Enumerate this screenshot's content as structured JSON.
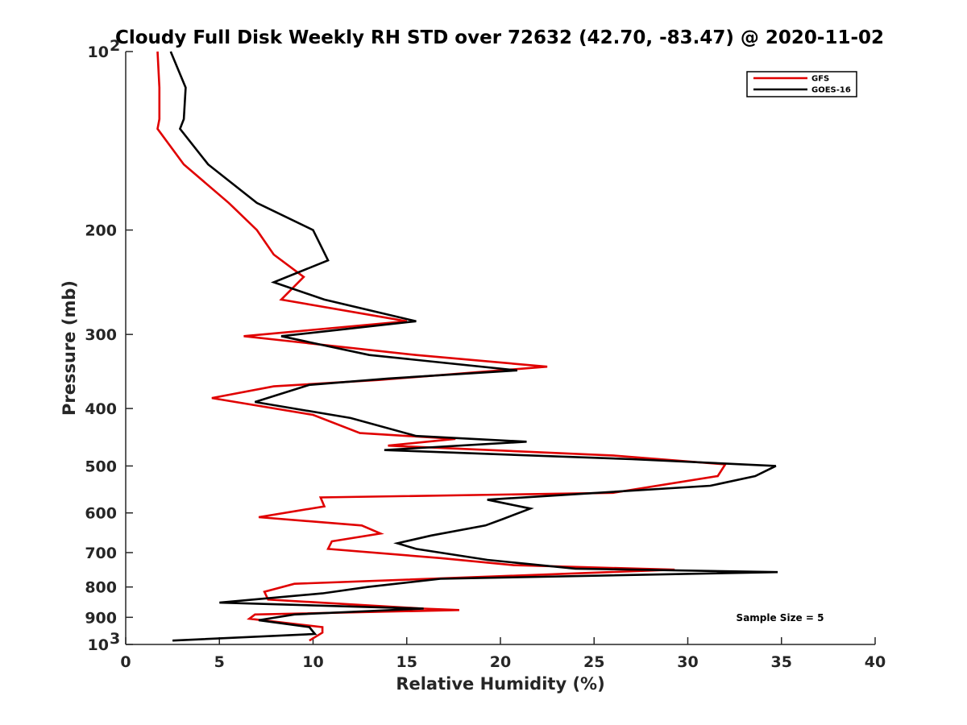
{
  "chart_data": {
    "type": "line",
    "title": "Cloudy Full Disk Weekly RH STD over 72632 (42.70, -83.47) @ 2020-11-02",
    "xlabel": "Relative Humidity (%)",
    "ylabel": "Pressure (mb)",
    "xlim": [
      0,
      40
    ],
    "ylim": [
      100,
      1000
    ],
    "y_scale": "log",
    "y_reversed": true,
    "grid": false,
    "legend_position": "top-right",
    "x_ticks": [
      "0",
      "5",
      "10",
      "15",
      "20",
      "25",
      "30",
      "35",
      "40"
    ],
    "y_ticks": [
      {
        "value": 100,
        "label": "10",
        "sup": "2"
      },
      {
        "value": 200,
        "label": "200",
        "sup": ""
      },
      {
        "value": 300,
        "label": "300",
        "sup": ""
      },
      {
        "value": 400,
        "label": "400",
        "sup": ""
      },
      {
        "value": 500,
        "label": "500",
        "sup": ""
      },
      {
        "value": 600,
        "label": "600",
        "sup": ""
      },
      {
        "value": 700,
        "label": "700",
        "sup": ""
      },
      {
        "value": 800,
        "label": "800",
        "sup": ""
      },
      {
        "value": 900,
        "label": "900",
        "sup": ""
      },
      {
        "value": 1000,
        "label": "10",
        "sup": "3"
      }
    ],
    "annotation": "Sample Size = 5",
    "series": [
      {
        "name": "GFS",
        "color": "#e00000",
        "points": [
          [
            1.7,
            100
          ],
          [
            1.8,
            115
          ],
          [
            1.8,
            130
          ],
          [
            1.7,
            135
          ],
          [
            3.1,
            155
          ],
          [
            5.5,
            180
          ],
          [
            7.0,
            200
          ],
          [
            7.9,
            220
          ],
          [
            9.5,
            240
          ],
          [
            8.3,
            262
          ],
          [
            15.0,
            285
          ],
          [
            6.3,
            302
          ],
          [
            15.5,
            325
          ],
          [
            22.5,
            340
          ],
          [
            13.5,
            358
          ],
          [
            7.9,
            367
          ],
          [
            4.6,
            384
          ],
          [
            10.0,
            410
          ],
          [
            12.5,
            440
          ],
          [
            17.6,
            450
          ],
          [
            14.0,
            462
          ],
          [
            26.0,
            480
          ],
          [
            32.0,
            497
          ],
          [
            31.6,
            520
          ],
          [
            26.0,
            555
          ],
          [
            10.4,
            565
          ],
          [
            10.6,
            585
          ],
          [
            7.1,
            610
          ],
          [
            12.6,
            630
          ],
          [
            13.6,
            650
          ],
          [
            11.0,
            670
          ],
          [
            10.8,
            690
          ],
          [
            16.8,
            715
          ],
          [
            20.7,
            735
          ],
          [
            29.3,
            748
          ],
          [
            21.0,
            765
          ],
          [
            9.0,
            790
          ],
          [
            7.4,
            815
          ],
          [
            7.6,
            840
          ],
          [
            15.9,
            870
          ],
          [
            17.8,
            875
          ],
          [
            6.9,
            890
          ],
          [
            6.6,
            905
          ],
          [
            10.5,
            935
          ],
          [
            10.5,
            955
          ],
          [
            9.8,
            985
          ]
        ]
      },
      {
        "name": "GOES-16",
        "color": "#000000",
        "points": [
          [
            2.4,
            100
          ],
          [
            3.2,
            115
          ],
          [
            3.1,
            130
          ],
          [
            2.9,
            135
          ],
          [
            4.4,
            155
          ],
          [
            7.0,
            180
          ],
          [
            10.0,
            200
          ],
          [
            10.8,
            225
          ],
          [
            7.9,
            245
          ],
          [
            10.6,
            262
          ],
          [
            15.5,
            285
          ],
          [
            8.3,
            302
          ],
          [
            13.0,
            325
          ],
          [
            20.9,
            345
          ],
          [
            14.0,
            356
          ],
          [
            9.8,
            365
          ],
          [
            6.9,
            390
          ],
          [
            12.0,
            415
          ],
          [
            15.5,
            445
          ],
          [
            21.4,
            455
          ],
          [
            13.8,
            470
          ],
          [
            27.0,
            487
          ],
          [
            34.7,
            500
          ],
          [
            33.6,
            520
          ],
          [
            31.2,
            540
          ],
          [
            19.3,
            570
          ],
          [
            21.6,
            590
          ],
          [
            20.1,
            615
          ],
          [
            19.2,
            630
          ],
          [
            16.3,
            655
          ],
          [
            14.5,
            675
          ],
          [
            15.5,
            690
          ],
          [
            19.3,
            720
          ],
          [
            24.0,
            745
          ],
          [
            34.8,
            755
          ],
          [
            16.8,
            775
          ],
          [
            12.9,
            800
          ],
          [
            10.5,
            820
          ],
          [
            5.0,
            850
          ],
          [
            15.9,
            870
          ],
          [
            9.0,
            890
          ],
          [
            7.1,
            910
          ],
          [
            9.8,
            935
          ],
          [
            10.1,
            960
          ],
          [
            2.5,
            985
          ]
        ]
      }
    ]
  }
}
